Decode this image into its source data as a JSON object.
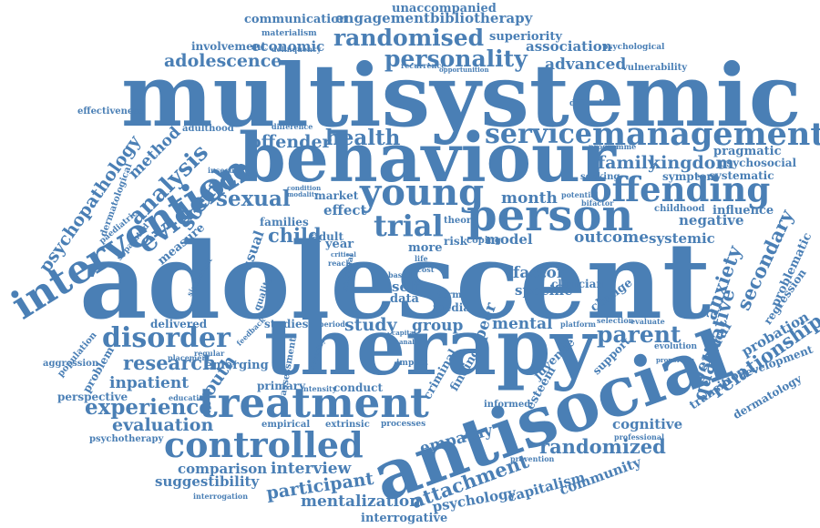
{
  "word_color": "#4a7fb5",
  "background": "#ffffff",
  "words": [
    "unaccompanied",
    "communication",
    "engagement",
    "bibliotherapy",
    "materialism",
    "superiority",
    "involvement",
    "economic",
    "randomised",
    "association",
    "psychological",
    "delinquency",
    "adolescence",
    "personality",
    "advanced",
    "vulnerability",
    "recurrence",
    "opportunition",
    "multisystemic",
    "effectiveness",
    "difficulties",
    "adulthood",
    "difference",
    "offender",
    "health",
    "service",
    "management",
    "programme",
    "pragmatic",
    "psychosocial",
    "method",
    "insecurity",
    "family",
    "kingdom",
    "symptom",
    "systematic",
    "psychopathology",
    "dermatological",
    "behaviour",
    "seeking",
    "analysis",
    "young",
    "offending",
    "sexual",
    "month",
    "potential",
    "bifactor",
    "childhood",
    "influence",
    "evidence",
    "social",
    "effect",
    "market",
    "modality",
    "condition",
    "person",
    "negative",
    "intervention",
    "paediatric",
    "families",
    "adult",
    "trial",
    "separated",
    "measure",
    "child",
    "theory",
    "risk",
    "coping",
    "outcome",
    "systemic",
    "secondary",
    "problematic",
    "usual",
    "year",
    "critical",
    "reach",
    "more",
    "life",
    "cost",
    "model",
    "adolescent",
    "significant",
    "national",
    "based",
    "self",
    "data",
    "term",
    "media",
    "specific",
    "clinician",
    "anxiety",
    "regression",
    "factor",
    "quality",
    "change",
    "population",
    "delivered",
    "studies",
    "study",
    "group",
    "peer",
    "mental",
    "parent",
    "probation",
    "feedback",
    "period",
    "capital",
    "analyse",
    "selection",
    "evaluate",
    "platform",
    "disorder",
    "regular",
    "placement",
    "therapy",
    "severity",
    "impact",
    "criminal",
    "juvenile",
    "qualitative",
    "general",
    "evolution",
    "relationship",
    "problem",
    "research",
    "assessment",
    "finding",
    "support",
    "proportion",
    "development",
    "aggression",
    "emerging",
    "inpatient",
    "youth",
    "primary",
    "intensity",
    "conduct",
    "informed",
    "esteem",
    "transition",
    "perspective",
    "education",
    "experience",
    "treatment",
    "dermatology",
    "evaluation",
    "empirical",
    "extrinsic",
    "processes",
    "cognitive",
    "psychotherapy",
    "antisocial",
    "empathy",
    "professional",
    "randomized",
    "controlled",
    "comparison",
    "interview",
    "prevention",
    "suggestibility",
    "participant",
    "attachment",
    "capitalism",
    "community",
    "interrogation",
    "mentalization",
    "psychology",
    "interrogative"
  ]
}
